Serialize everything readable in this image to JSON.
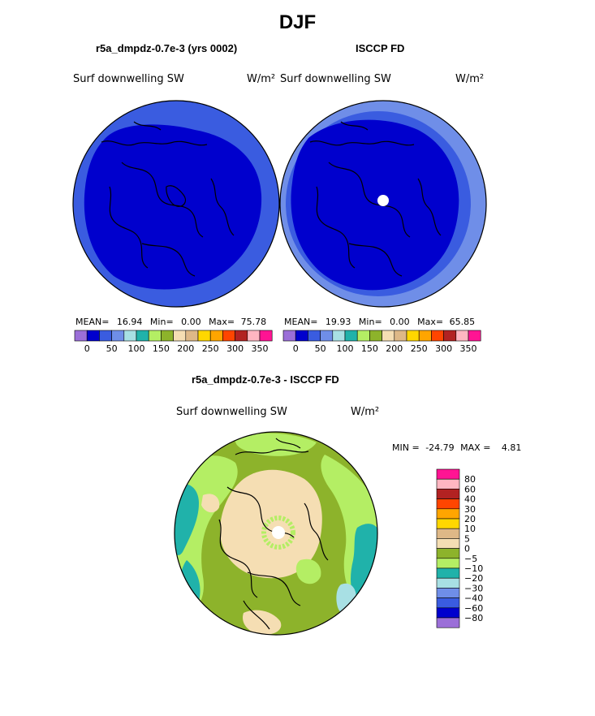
{
  "page": {
    "title": "DJF",
    "panel_left_title": "r5a_dmpdz-0.7e-3 (yrs 0002)",
    "panel_right_title": "ISCCP FD",
    "panel_diff_title": "r5a_dmpdz-0.7e-3 - ISCCP FD"
  },
  "chart_data": [
    {
      "type": "heatmap",
      "projection": "polar-stereographic",
      "title": "r5a_dmpdz-0.7e-3 (yrs 0002)",
      "variable": "Surf downwelling SW",
      "units": "W/m²",
      "stats": {
        "mean_label": "MEAN=",
        "mean": "16.94",
        "min_label": "Min=",
        "min": "0.00",
        "max_label": "Max=",
        "max": "75.78"
      },
      "levels": [
        0,
        25,
        50,
        75,
        100,
        125,
        150,
        175,
        200,
        225,
        250,
        275,
        300,
        325,
        350
      ],
      "tick_labels": [
        "0",
        "50",
        "100",
        "150",
        "200",
        "250",
        "300",
        "350"
      ],
      "fill_bands": [
        {
          "range": [
            0,
            25
          ],
          "color": "#0000cd"
        },
        {
          "range": [
            25,
            50
          ],
          "color": "#3a5ce0"
        },
        {
          "range": [
            50,
            75
          ],
          "color": "#6f8ee8"
        }
      ]
    },
    {
      "type": "heatmap",
      "projection": "polar-stereographic",
      "title": "ISCCP FD",
      "variable": "Surf downwelling SW",
      "units": "W/m²",
      "stats": {
        "mean_label": "MEAN=",
        "mean": "19.93",
        "min_label": "Min=",
        "min": "0.00",
        "max_label": "Max=",
        "max": "65.85"
      },
      "levels": [
        0,
        25,
        50,
        75,
        100,
        125,
        150,
        175,
        200,
        225,
        250,
        275,
        300,
        325,
        350
      ],
      "tick_labels": [
        "0",
        "50",
        "100",
        "150",
        "200",
        "250",
        "300",
        "350"
      ],
      "fill_bands": [
        {
          "range": [
            0,
            25
          ],
          "color": "#0000cd"
        },
        {
          "range": [
            25,
            50
          ],
          "color": "#3a5ce0"
        },
        {
          "range": [
            50,
            75
          ],
          "color": "#6f8ee8"
        }
      ]
    },
    {
      "type": "heatmap",
      "projection": "polar-stereographic",
      "title": "r5a_dmpdz-0.7e-3 - ISCCP FD",
      "variable": "Surf downwelling SW",
      "units": "W/m²",
      "stats": {
        "min_label": "MIN =",
        "min": "-24.79",
        "max_label": "MAX =",
        "max": "4.81"
      },
      "levels": [
        80,
        60,
        40,
        30,
        20,
        10,
        5,
        0,
        -5,
        -10,
        -20,
        -30,
        -40,
        -60,
        -80
      ],
      "tick_labels": [
        "80",
        "60",
        "40",
        "30",
        "20",
        "10",
        "5",
        "0",
        "−5",
        "−10",
        "−20",
        "−30",
        "−40",
        "−60",
        "−80"
      ]
    }
  ],
  "colorbar_abs": [
    "#9b6fd8",
    "#0000cd",
    "#3a5ce0",
    "#6f8ee8",
    "#a8e0e4",
    "#20b2aa",
    "#b4ee64",
    "#8db32b",
    "#f5deb3",
    "#deb887",
    "#ffd700",
    "#ffa500",
    "#ff4500",
    "#b22222",
    "#ffb6c1",
    "#ff1493"
  ],
  "colorbar_diff": [
    "#ff1493",
    "#ffb6c1",
    "#b22222",
    "#ff4500",
    "#ffa500",
    "#ffd700",
    "#deb887",
    "#f5deb3",
    "#8db32b",
    "#b4ee64",
    "#20b2aa",
    "#a8e0e4",
    "#6f8ee8",
    "#3a5ce0",
    "#0000cd",
    "#9b6fd8"
  ]
}
